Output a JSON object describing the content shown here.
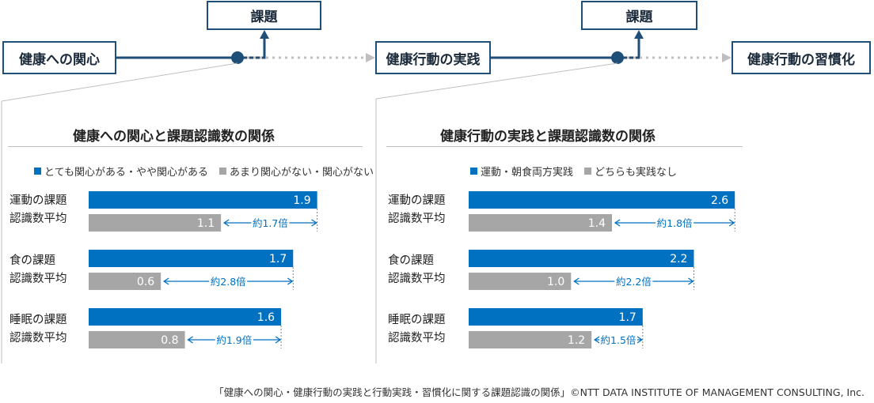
{
  "flow": {
    "interest": "健康への関心",
    "practice": "健康行動の実践",
    "habit": "健康行動の習慣化",
    "issue_left": "課題",
    "issue_right": "課題"
  },
  "colors": {
    "navy": "#1f4e79",
    "blue": "#0070c0",
    "gray": "#a6a6a6",
    "dotted": "#bfbfbf"
  },
  "chart_data": [
    {
      "type": "bar",
      "title": "健康への関心と課題認識数の関係",
      "legend": [
        "とても関心がある・やや関心がある",
        "あまり関心がない・関心がない"
      ],
      "categories": [
        [
          "運動の課題",
          "認識数平均"
        ],
        [
          "食の課題",
          "認識数平均"
        ],
        [
          "睡眠の課題",
          "認識数平均"
        ]
      ],
      "series": [
        {
          "name": "とても関心がある・やや関心がある",
          "values": [
            1.9,
            1.7,
            1.6
          ],
          "labels": [
            "1.9",
            "1.7",
            "1.6"
          ]
        },
        {
          "name": "あまり関心がない・関心がない",
          "values": [
            1.1,
            0.6,
            0.8
          ],
          "labels": [
            "1.1",
            "0.6",
            "0.8"
          ]
        }
      ],
      "ratios": [
        "約1.7倍",
        "約2.8倍",
        "約1.9倍"
      ],
      "xlim": [
        0,
        2.6
      ]
    },
    {
      "type": "bar",
      "title": "健康行動の実践と課題認識数の関係",
      "legend": [
        "運動・朝食両方実践",
        "どちらも実践なし"
      ],
      "categories": [
        [
          "運動の課題",
          "認識数平均"
        ],
        [
          "食の課題",
          "認識数平均"
        ],
        [
          "睡眠の課題",
          "認識数平均"
        ]
      ],
      "series": [
        {
          "name": "運動・朝食両方実践",
          "values": [
            2.6,
            2.2,
            1.7
          ],
          "labels": [
            "2.6",
            "2.2",
            "1.7"
          ]
        },
        {
          "name": "どちらも実践なし",
          "values": [
            1.4,
            1.0,
            1.2
          ],
          "labels": [
            "1.4",
            "1.0",
            "1.2"
          ]
        }
      ],
      "ratios": [
        "約1.8倍",
        "約2.2倍",
        "約1.5倍"
      ],
      "xlim": [
        0,
        2.9
      ]
    }
  ],
  "footnote": "「健康への関心・健康行動の実践と行動実践・習慣化に関する課題認識の関係」©NTT DATA INSTITUTE OF MANAGEMENT CONSULTING, Inc."
}
